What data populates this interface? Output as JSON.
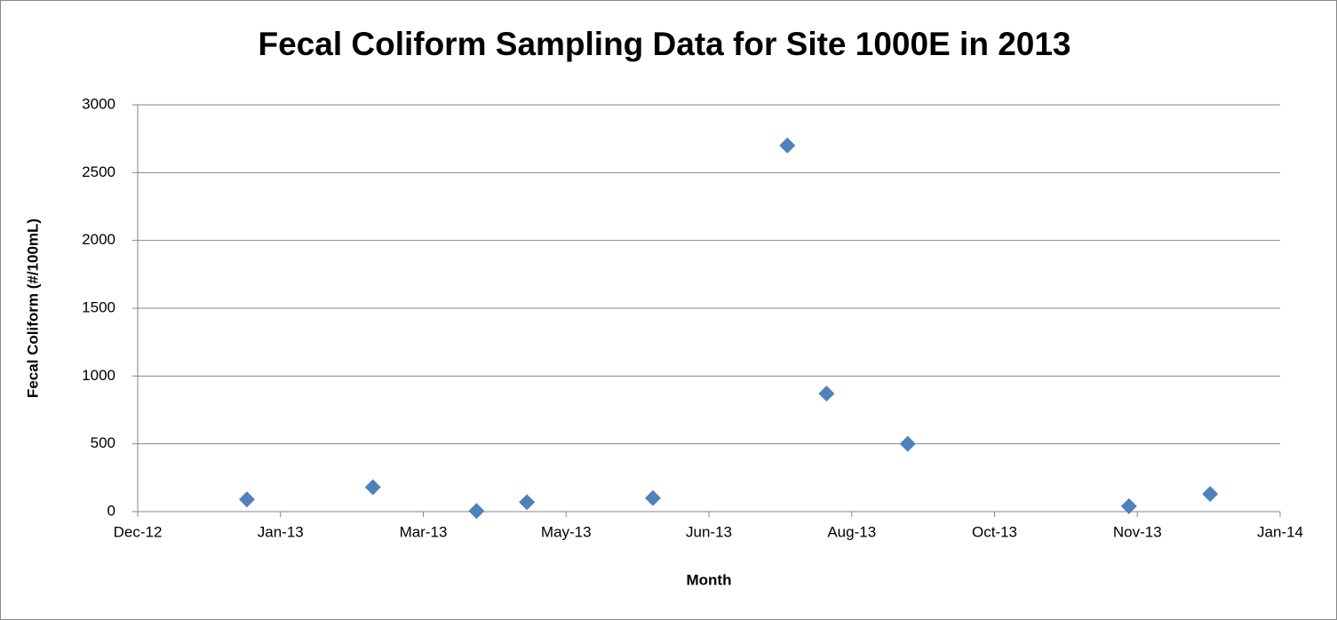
{
  "chart_data": {
    "type": "scatter",
    "title": "Fecal Coliform Sampling Data for Site 1000E in 2013",
    "x_label": "Month",
    "y_label": "Fecal Coliform (#/100mL)",
    "color": "#4f81bd",
    "x": [
      41283,
      41328,
      41365,
      41383,
      41428,
      41476,
      41490,
      41519,
      41598,
      41627
    ],
    "values": [
      90,
      180,
      5,
      70,
      100,
      2700,
      870,
      500,
      40,
      130
    ],
    "xlim": [
      41244,
      41652
    ],
    "xticks": [
      {
        "value": 41244,
        "label": "Dec-12"
      },
      {
        "value": 41295,
        "label": "Jan-13"
      },
      {
        "value": 41346,
        "label": "Mar-13"
      },
      {
        "value": 41397,
        "label": "May-13"
      },
      {
        "value": 41448,
        "label": "Jun-13"
      },
      {
        "value": 41499,
        "label": "Aug-13"
      },
      {
        "value": 41550,
        "label": "Oct-13"
      },
      {
        "value": 41601,
        "label": "Nov-13"
      },
      {
        "value": 41652,
        "label": "Jan-14"
      }
    ],
    "ylim": [
      0,
      3000
    ],
    "yticks": [
      0,
      500,
      1000,
      1500,
      2000,
      2500,
      3000
    ],
    "grid": true
  }
}
